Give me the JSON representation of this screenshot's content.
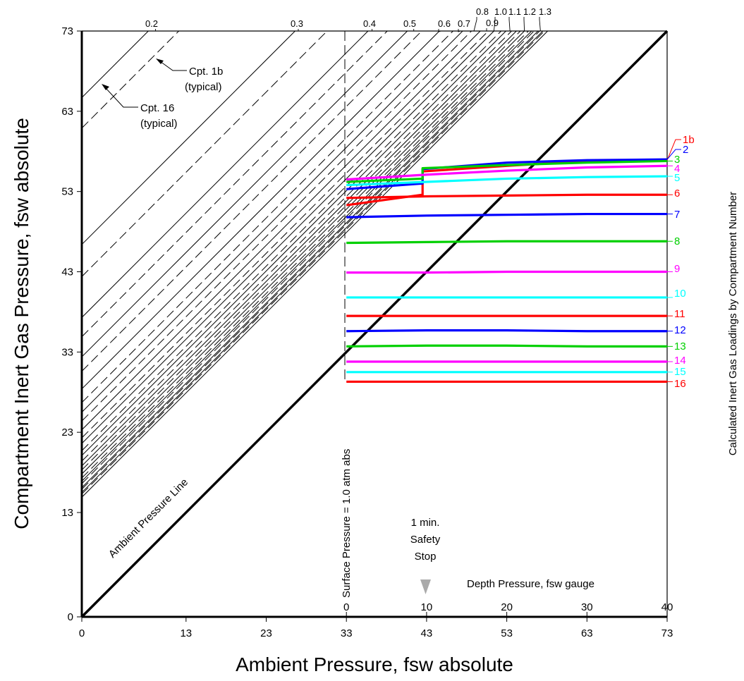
{
  "chart_data": {
    "type": "line",
    "xlabel": "Ambient Pressure, fsw absolute",
    "ylabel": "Compartment Inert Gas Pressure, fsw absolute",
    "right_label": "Calculated Inert Gas Loadings by Compartment Number",
    "depth_label": "Depth Pressure, fsw gauge",
    "xlim": [
      0,
      73
    ],
    "ylim": [
      0,
      73
    ],
    "x_ticks": [
      0,
      13,
      23,
      33,
      43,
      53,
      63,
      73
    ],
    "y_ticks": [
      0,
      13,
      23,
      33,
      43,
      53,
      63,
      73
    ],
    "depth_ticks": [
      {
        "label": "0",
        "x": 33
      },
      {
        "label": "10",
        "x": 43
      },
      {
        "label": "20",
        "x": 53
      },
      {
        "label": "30",
        "x": 63
      },
      {
        "label": "40",
        "x": 73
      }
    ],
    "ambient_line_label": "Ambient Pressure Line",
    "surface_label": "Surface Pressure = 1.0 atm abs",
    "surface_x": 33,
    "safety_stop": {
      "lines": [
        "1 min.",
        "Safety",
        "Stop"
      ],
      "x": 43
    },
    "callouts": [
      {
        "lines": [
          "Cpt. 1b",
          "(typical)"
        ],
        "target": "dashed"
      },
      {
        "lines": [
          "Cpt. 16",
          "(typical)"
        ],
        "target": "solid"
      }
    ],
    "m_value_lines": [
      {
        "label": "0.2",
        "x_at_top": 9.2
      },
      {
        "label": "0.3",
        "x_at_top": 27.0
      },
      {
        "label": "0.4",
        "x_at_top": 36.2
      },
      {
        "label": "0.5",
        "x_at_top": 41.4
      },
      {
        "label": "0.6",
        "x_at_top": 44.8
      },
      {
        "label": "0.7",
        "x_at_top": 47.2
      },
      {
        "label": "0.8",
        "x_at_top": 48.9
      },
      {
        "label": "0.9",
        "x_at_top": 50.4
      },
      {
        "label": "1.0",
        "x_at_top": 51.4
      },
      {
        "label": "1.1",
        "x_at_top": 53.4
      },
      {
        "label": "1.2",
        "x_at_top": 55.2
      },
      {
        "label": "1.3",
        "x_at_top": 57.2
      }
    ],
    "m_solid_y_intercepts": [
      64.7,
      46.4,
      37.3,
      32.4,
      28.4,
      25.5,
      23.3,
      21.6,
      20.1,
      18.8,
      17.8,
      16.9,
      16.1,
      15.5,
      14.9
    ],
    "m_dashed_y_intercepts": [
      60.9,
      42.4,
      34.9,
      30.6,
      26.7,
      24.4,
      22.3,
      20.7,
      19.4,
      18.3,
      17.3,
      16.6,
      15.9,
      15.3
    ],
    "series": [
      {
        "name": "1b",
        "color": "#ff0000",
        "x": [
          33,
          42.5,
          42.5,
          53,
          63,
          73
        ],
        "y": [
          51.3,
          52.6,
          55.5,
          56.2,
          56.8,
          56.9
        ]
      },
      {
        "name": "2",
        "color": "#0000ff",
        "x": [
          33,
          42.5,
          42.5,
          53,
          63,
          73
        ],
        "y": [
          53.3,
          54.0,
          55.8,
          56.6,
          56.9,
          57.0
        ]
      },
      {
        "name": "3",
        "color": "#00d000",
        "x": [
          33,
          42.5,
          42.5,
          53,
          63,
          73
        ],
        "y": [
          54.2,
          54.6,
          55.9,
          56.3,
          56.6,
          56.8
        ]
      },
      {
        "name": "4",
        "color": "#ff00ff",
        "x": [
          33,
          43,
          53,
          63,
          73
        ],
        "y": [
          54.5,
          55.1,
          55.6,
          56.0,
          56.2
        ]
      },
      {
        "name": "5",
        "color": "#00ffff",
        "x": [
          33,
          43,
          53,
          63,
          73
        ],
        "y": [
          53.8,
          54.2,
          54.6,
          54.8,
          54.9
        ]
      },
      {
        "name": "6",
        "color": "#ff0000",
        "x": [
          33,
          43,
          53,
          63,
          73
        ],
        "y": [
          52.2,
          52.4,
          52.5,
          52.6,
          52.6
        ]
      },
      {
        "name": "7",
        "color": "#0000ff",
        "x": [
          33,
          43,
          53,
          63,
          73
        ],
        "y": [
          49.8,
          50.0,
          50.1,
          50.2,
          50.2
        ]
      },
      {
        "name": "8",
        "color": "#00d000",
        "x": [
          33,
          43,
          53,
          63,
          73
        ],
        "y": [
          46.6,
          46.7,
          46.8,
          46.8,
          46.8
        ]
      },
      {
        "name": "9",
        "color": "#ff00ff",
        "x": [
          33,
          43,
          53,
          63,
          73
        ],
        "y": [
          42.9,
          42.9,
          43.0,
          43.0,
          43.0
        ]
      },
      {
        "name": "10",
        "color": "#00ffff",
        "x": [
          33,
          43,
          53,
          63,
          73
        ],
        "y": [
          39.8,
          39.8,
          39.8,
          39.8,
          39.8
        ]
      },
      {
        "name": "11",
        "color": "#ff0000",
        "x": [
          33,
          43,
          53,
          63,
          73
        ],
        "y": [
          37.5,
          37.5,
          37.5,
          37.5,
          37.5
        ]
      },
      {
        "name": "12",
        "color": "#0000ff",
        "x": [
          33,
          43,
          53,
          63,
          73
        ],
        "y": [
          35.6,
          35.7,
          35.7,
          35.6,
          35.6
        ]
      },
      {
        "name": "13",
        "color": "#00d000",
        "x": [
          33,
          43,
          53,
          63,
          73
        ],
        "y": [
          33.7,
          33.8,
          33.8,
          33.7,
          33.7
        ]
      },
      {
        "name": "14",
        "color": "#ff00ff",
        "x": [
          33,
          43,
          53,
          63,
          73
        ],
        "y": [
          31.8,
          31.8,
          31.8,
          31.8,
          31.8
        ]
      },
      {
        "name": "15",
        "color": "#00ffff",
        "x": [
          33,
          43,
          53,
          63,
          73
        ],
        "y": [
          30.5,
          30.5,
          30.5,
          30.5,
          30.5
        ]
      },
      {
        "name": "16",
        "color": "#ff0000",
        "x": [
          33,
          43,
          53,
          63,
          73
        ],
        "y": [
          29.3,
          29.3,
          29.3,
          29.3,
          29.3
        ]
      }
    ]
  }
}
